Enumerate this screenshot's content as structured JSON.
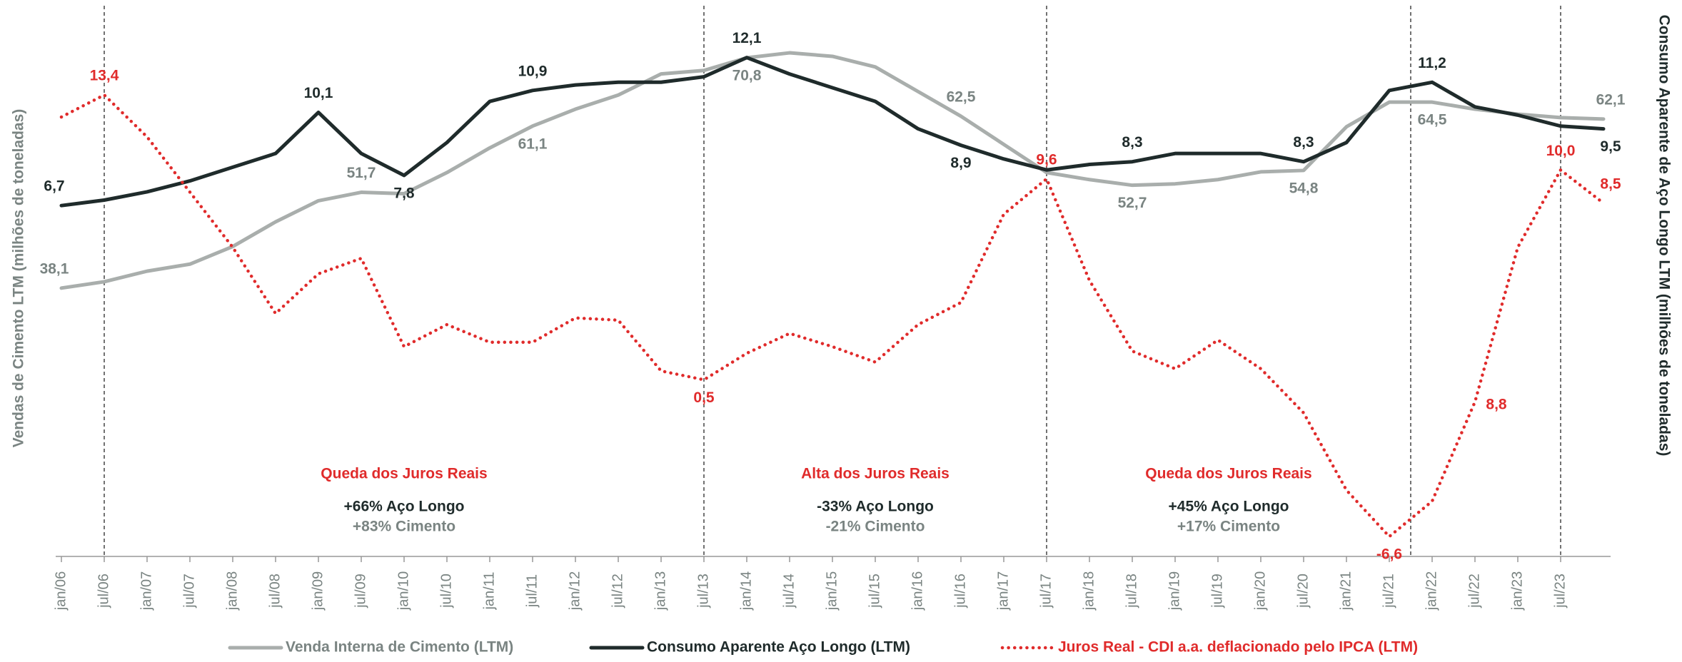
{
  "chart_data": {
    "type": "line",
    "y_label": "Vendas de Cimento LTM (milhões de toneladas)",
    "y2_label": "Consumo Aparente de Aço Longo LTM (milhões de toneladas)",
    "categories": [
      "jan/06",
      "jul/06",
      "jan/07",
      "jul/07",
      "jan/08",
      "jul/08",
      "jan/09",
      "jul/09",
      "jan/10",
      "jul/10",
      "jan/11",
      "jul/11",
      "jan/12",
      "jul/12",
      "jan/13",
      "jul/13",
      "jan/14",
      "jul/14",
      "jan/15",
      "jul/15",
      "jan/16",
      "jul/16",
      "jan/17",
      "jul/17",
      "jan/18",
      "jul/18",
      "jan/19",
      "jul/19",
      "jan/20",
      "jul/20",
      "jan/21",
      "jul/21",
      "jan/22",
      "jul/22",
      "jan/23",
      "jul/23",
      null
    ],
    "ylim": [
      0,
      79
    ],
    "y2lim": [
      -6.1,
      14.2
    ],
    "y3lim": [
      -7.5,
      17.7
    ],
    "series": [
      {
        "name": "Venda Interna de Cimento (LTM)",
        "color": "#a9aeac",
        "label_color": "#7a8482",
        "axis": "y",
        "values": [
          38.1,
          39,
          40.5,
          41.5,
          44,
          47.5,
          50.5,
          51.7,
          51.5,
          54.5,
          58,
          61.1,
          63.5,
          65.5,
          68.5,
          69,
          70.8,
          71.5,
          71,
          69.5,
          66,
          62.5,
          58.5,
          54.5,
          53.5,
          52.7,
          52.9,
          53.5,
          54.6,
          54.8,
          61,
          64.5,
          64.5,
          63.5,
          62.8,
          62.3,
          62.1
        ],
        "value_labels": [
          "38,1",
          null,
          null,
          null,
          null,
          null,
          null,
          "51,7",
          null,
          null,
          null,
          "61,1",
          null,
          null,
          null,
          null,
          "70,8",
          null,
          null,
          null,
          null,
          "62,5",
          null,
          null,
          null,
          "52,7",
          null,
          null,
          null,
          "54,8",
          null,
          null,
          "64,5",
          null,
          null,
          null,
          "62,1"
        ]
      },
      {
        "name": "Consumo Aparente Aço Longo (LTM)",
        "color": "#1f2b2b",
        "label_color": "#1f2b2b",
        "axis": "y2",
        "values": [
          6.7,
          6.9,
          7.2,
          7.6,
          8.1,
          8.6,
          10.1,
          8.6,
          7.8,
          9.0,
          10.5,
          10.9,
          11.1,
          11.2,
          11.2,
          11.4,
          12.1,
          11.5,
          11.0,
          10.5,
          9.5,
          8.9,
          8.4,
          8.0,
          8.2,
          8.3,
          8.6,
          8.6,
          8.6,
          8.3,
          9.0,
          10.9,
          11.2,
          10.3,
          10.0,
          9.6,
          9.5
        ],
        "value_labels": [
          "6,7",
          null,
          null,
          null,
          null,
          null,
          "10,1",
          null,
          "7,8",
          null,
          null,
          "10,9",
          null,
          null,
          null,
          null,
          "12,1",
          null,
          null,
          null,
          null,
          "8,9",
          null,
          null,
          null,
          "8,3",
          null,
          null,
          null,
          "8,3",
          null,
          null,
          "11,2",
          null,
          null,
          null,
          "9,5"
        ]
      },
      {
        "name": "Juros Real - CDI a.a. deflacionado pelo IPCA (LTM)",
        "color": "#e02b2b",
        "label_color": "#e02b2b",
        "axis": "y3",
        "values": [
          12.4,
          13.4,
          11.5,
          9,
          6.5,
          3.5,
          5.3,
          6.0,
          2.0,
          3.0,
          2.2,
          2.2,
          3.3,
          3.2,
          0.9,
          0.5,
          1.7,
          2.6,
          2.0,
          1.3,
          3.0,
          4.0,
          8.0,
          9.6,
          5.0,
          1.8,
          1.0,
          2.3,
          1.0,
          -1.0,
          -4.5,
          -6.6,
          -5.0,
          -0.5,
          6.5,
          10.0,
          8.5
        ],
        "value_labels": [
          null,
          "13,4",
          null,
          null,
          null,
          null,
          null,
          null,
          null,
          null,
          null,
          null,
          null,
          null,
          null,
          "0,5",
          null,
          null,
          null,
          null,
          null,
          null,
          null,
          "9,6",
          null,
          null,
          null,
          null,
          null,
          null,
          null,
          "-6,6",
          null,
          null,
          null,
          "10,0",
          "8,5"
        ]
      }
    ],
    "annotations": [
      "8,8"
    ],
    "periods": [
      {
        "title": "Queda dos Juros Reais",
        "steel": "+66% Aço Longo",
        "cement": "+83% Cimento"
      },
      {
        "title": "Alta dos Juros Reais",
        "steel": "-33% Aço Longo",
        "cement": "-21% Cimento"
      },
      {
        "title": "Queda dos Juros Reais",
        "steel": "+45% Aço Longo",
        "cement": "+17% Cimento"
      }
    ]
  }
}
